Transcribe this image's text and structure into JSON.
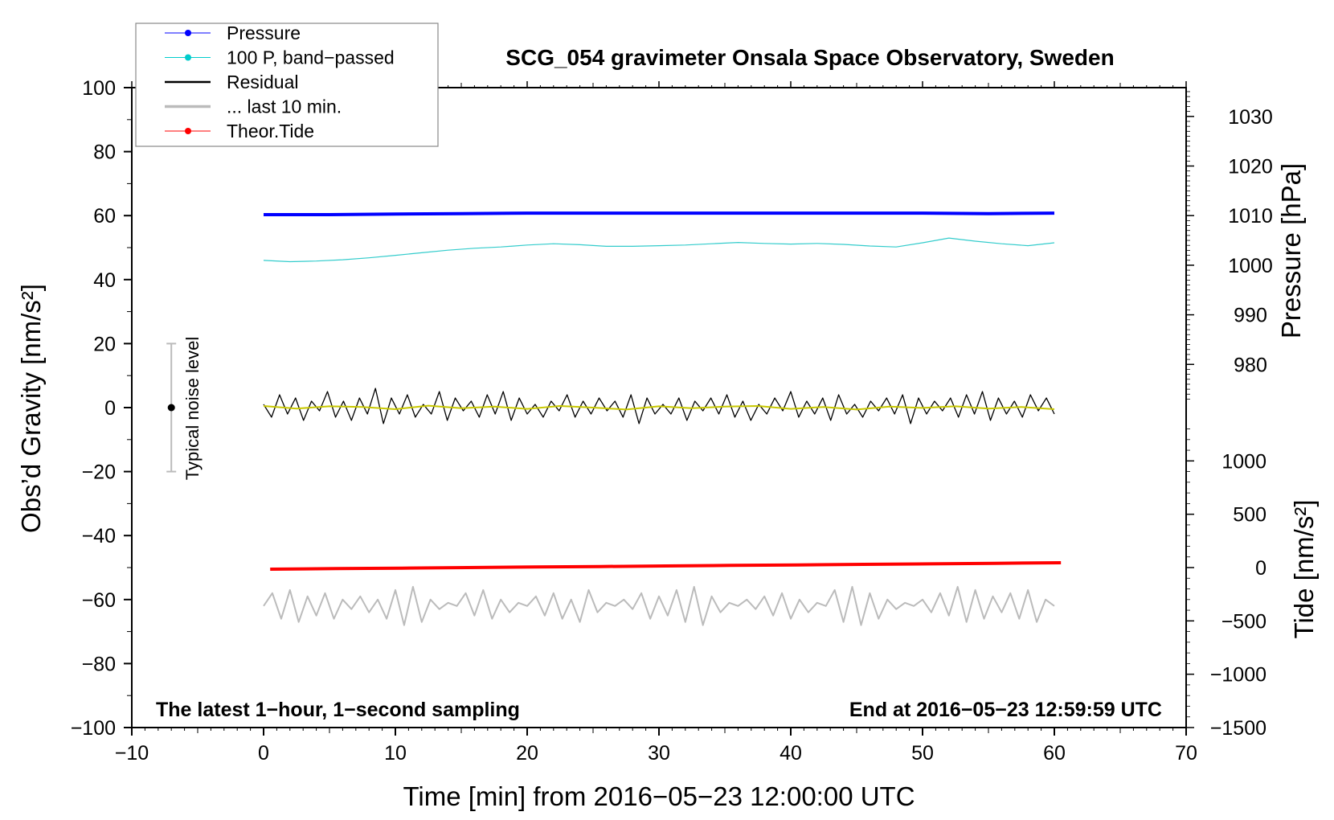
{
  "chart_data": {
    "type": "line",
    "title": "SCG_054 gravimeter Onsala Space Observatory, Sweden",
    "xlabel": "Time [min] from 2016−05−23 12:00:00 UTC",
    "ylabel": "Obs’d Gravity [nm/s²]",
    "ylabel_right_top": "Pressure [hPa]",
    "ylabel_right_bottom": "Tide [nm/s²]",
    "xlim": [
      -10,
      70
    ],
    "ylim": [
      -100,
      100
    ],
    "xticks": [
      "−10",
      "0",
      "10",
      "20",
      "30",
      "40",
      "50",
      "60",
      "70"
    ],
    "yticks": [
      "−100",
      "−80",
      "−60",
      "−40",
      "−20",
      "0",
      "20",
      "40",
      "60",
      "80",
      "100"
    ],
    "pressure_ticks": [
      "980",
      "990",
      "1000",
      "1010",
      "1020",
      "1030"
    ],
    "tide_ticks": [
      "−1500",
      "−1000",
      "−500",
      "0",
      "500",
      "1000"
    ],
    "note_left": "The latest 1−hour, 1−second sampling",
    "note_right": "End at 2016−05−23 12:59:59 UTC",
    "noise_label": "Typical noise level",
    "noise_bar": {
      "x": -7,
      "low": -20,
      "high": 20,
      "center": 0
    },
    "legend": {
      "position": "top-left",
      "entries": [
        {
          "label": "Pressure",
          "color": "#0000ff",
          "marker": true
        },
        {
          "label": "100 P, band−passed",
          "color": "#00cccc",
          "marker": true
        },
        {
          "label": "Residual",
          "color": "#000000",
          "marker": false
        },
        {
          "label": "... last 10 min.",
          "color": "#bbbbbb",
          "marker": false
        },
        {
          "label": "Theor.Tide",
          "color": "#ff0000",
          "marker": true
        }
      ]
    },
    "series": {
      "pressure_hpa": {
        "x_range": [
          0,
          60
        ],
        "color": "#0000ff",
        "values": [
          1010.2,
          1010.2,
          1010.3,
          1010.4,
          1010.5,
          1010.5,
          1010.5,
          1010.5,
          1010.5,
          1010.5,
          1010.5,
          1010.4,
          1010.5
        ]
      },
      "band_passed": {
        "x_range": [
          0,
          60
        ],
        "color": "#33cccc",
        "values": [
          46,
          45.6,
          45.8,
          46.2,
          46.8,
          47.6,
          48.4,
          49.2,
          49.8,
          50.2,
          50.8,
          51.2,
          50.9,
          50.4,
          50.4,
          50.6,
          50.8,
          51.2,
          51.6,
          51.3,
          51.1,
          51.3,
          51.0,
          50.5,
          50.2,
          51.5,
          53.0,
          52.0,
          51.2,
          50.6,
          51.5
        ]
      },
      "residual": {
        "x_range": [
          0,
          60
        ],
        "color": "#000000",
        "values": [
          1,
          -3,
          4,
          -2,
          3,
          -4,
          2,
          -1,
          5,
          -3,
          2,
          -4,
          3,
          -2,
          6,
          -5,
          3,
          -2,
          4,
          -3,
          1,
          -2,
          5,
          -4,
          3,
          -1,
          2,
          -3,
          4,
          -2,
          5,
          -4,
          3,
          -2,
          1,
          -3,
          2,
          -1,
          4,
          -3,
          2,
          -2,
          3,
          -1,
          2,
          -3,
          4,
          -5,
          3,
          -2,
          1,
          -2,
          3,
          -4,
          2,
          -1,
          3,
          -2,
          4,
          -3,
          2,
          -4,
          1,
          -2,
          3,
          -1,
          5,
          -3,
          2,
          -2,
          3,
          -4,
          4,
          -2,
          1,
          -3,
          2,
          -1,
          3,
          -2,
          4,
          -5,
          3,
          -2,
          2,
          -1,
          3,
          -3,
          4,
          -2,
          5,
          -4,
          3,
          -2,
          2,
          -3,
          4,
          -1,
          3,
          -2
        ]
      },
      "residual_smoothed": {
        "x_range": [
          0,
          60
        ],
        "color": "#c8c800",
        "values": [
          0.5,
          -0.3,
          0.4,
          0.2,
          -0.5,
          0.6,
          -0.2,
          0.3,
          -0.4,
          0.5,
          0,
          -0.6,
          0.4,
          -0.2,
          0.3,
          0.5,
          -0.4,
          0.2,
          -0.6,
          0.3,
          -0.1,
          0.4,
          -0.3,
          0.2,
          -0.5
        ]
      },
      "last_10_min": {
        "x_range": [
          0,
          60
        ],
        "color": "#bbbbbb",
        "values": [
          -62,
          -58,
          -66,
          -57,
          -67,
          -59,
          -65,
          -58,
          -66,
          -60,
          -63,
          -59,
          -64,
          -60,
          -66,
          -57,
          -68,
          -56,
          -67,
          -60,
          -63,
          -61,
          -62,
          -58,
          -65,
          -57,
          -66,
          -60,
          -64,
          -61,
          -62,
          -59,
          -65,
          -58,
          -66,
          -60,
          -67,
          -57,
          -64,
          -61,
          -62,
          -60,
          -63,
          -58,
          -66,
          -59,
          -65,
          -57,
          -67,
          -56,
          -68,
          -59,
          -64,
          -61,
          -62,
          -60,
          -63,
          -59,
          -65,
          -58,
          -66,
          -60,
          -64,
          -61,
          -62,
          -57,
          -67,
          -56,
          -68,
          -58,
          -66,
          -60,
          -63,
          -61,
          -62,
          -60,
          -64,
          -58,
          -65,
          -56,
          -67,
          -57,
          -66,
          -59,
          -64,
          -58,
          -66,
          -57,
          -67,
          -60,
          -62
        ]
      },
      "theor_tide_nms2": {
        "x_range": [
          0.5,
          60.5
        ],
        "color": "#ff0000",
        "values": [
          -15,
          -10,
          -5,
          0,
          5,
          10,
          15,
          20,
          25,
          30,
          35,
          40,
          45
        ]
      }
    }
  }
}
